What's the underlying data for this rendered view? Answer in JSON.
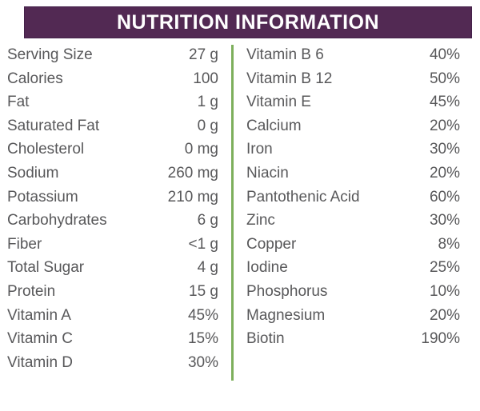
{
  "header": {
    "title": "NUTRITION INFORMATION"
  },
  "colors": {
    "page_bg": "#ffffff",
    "header_bg": "#522953",
    "header_border": "#44214a",
    "header_text": "#ffffff",
    "divider": "#7daf5c",
    "text": "#58585a"
  },
  "columns": [
    {
      "name": "left",
      "rows": [
        {
          "label": "Serving Size",
          "value": "27 g"
        },
        {
          "label": "Calories",
          "value": "100"
        },
        {
          "label": "Fat",
          "value": "1 g"
        },
        {
          "label": "Saturated Fat",
          "value": "0 g"
        },
        {
          "label": "Cholesterol",
          "value": "0 mg"
        },
        {
          "label": "Sodium",
          "value": "260 mg"
        },
        {
          "label": "Potassium",
          "value": "210 mg"
        },
        {
          "label": "Carbohydrates",
          "value": "6 g"
        },
        {
          "label": "Fiber",
          "value": "<1 g"
        },
        {
          "label": "Total Sugar",
          "value": "4 g"
        },
        {
          "label": "Protein",
          "value": "15 g"
        },
        {
          "label": "Vitamin A",
          "value": "45%"
        },
        {
          "label": "Vitamin C",
          "value": "15%"
        },
        {
          "label": "Vitamin D",
          "value": "30%"
        }
      ]
    },
    {
      "name": "right",
      "rows": [
        {
          "label": "Vitamin B 6",
          "value": "40%"
        },
        {
          "label": "Vitamin B 12",
          "value": "50%"
        },
        {
          "label": "Vitamin E",
          "value": "45%"
        },
        {
          "label": "Calcium",
          "value": "20%"
        },
        {
          "label": "Iron",
          "value": "30%"
        },
        {
          "label": "Niacin",
          "value": "20%"
        },
        {
          "label": "Pantothenic Acid",
          "value": "60%"
        },
        {
          "label": "Zinc",
          "value": "30%"
        },
        {
          "label": "Copper",
          "value": "8%"
        },
        {
          "label": "Iodine",
          "value": "25%"
        },
        {
          "label": "Phosphorus",
          "value": "10%"
        },
        {
          "label": "Magnesium",
          "value": "20%"
        },
        {
          "label": "Biotin",
          "value": "190%"
        }
      ]
    }
  ]
}
